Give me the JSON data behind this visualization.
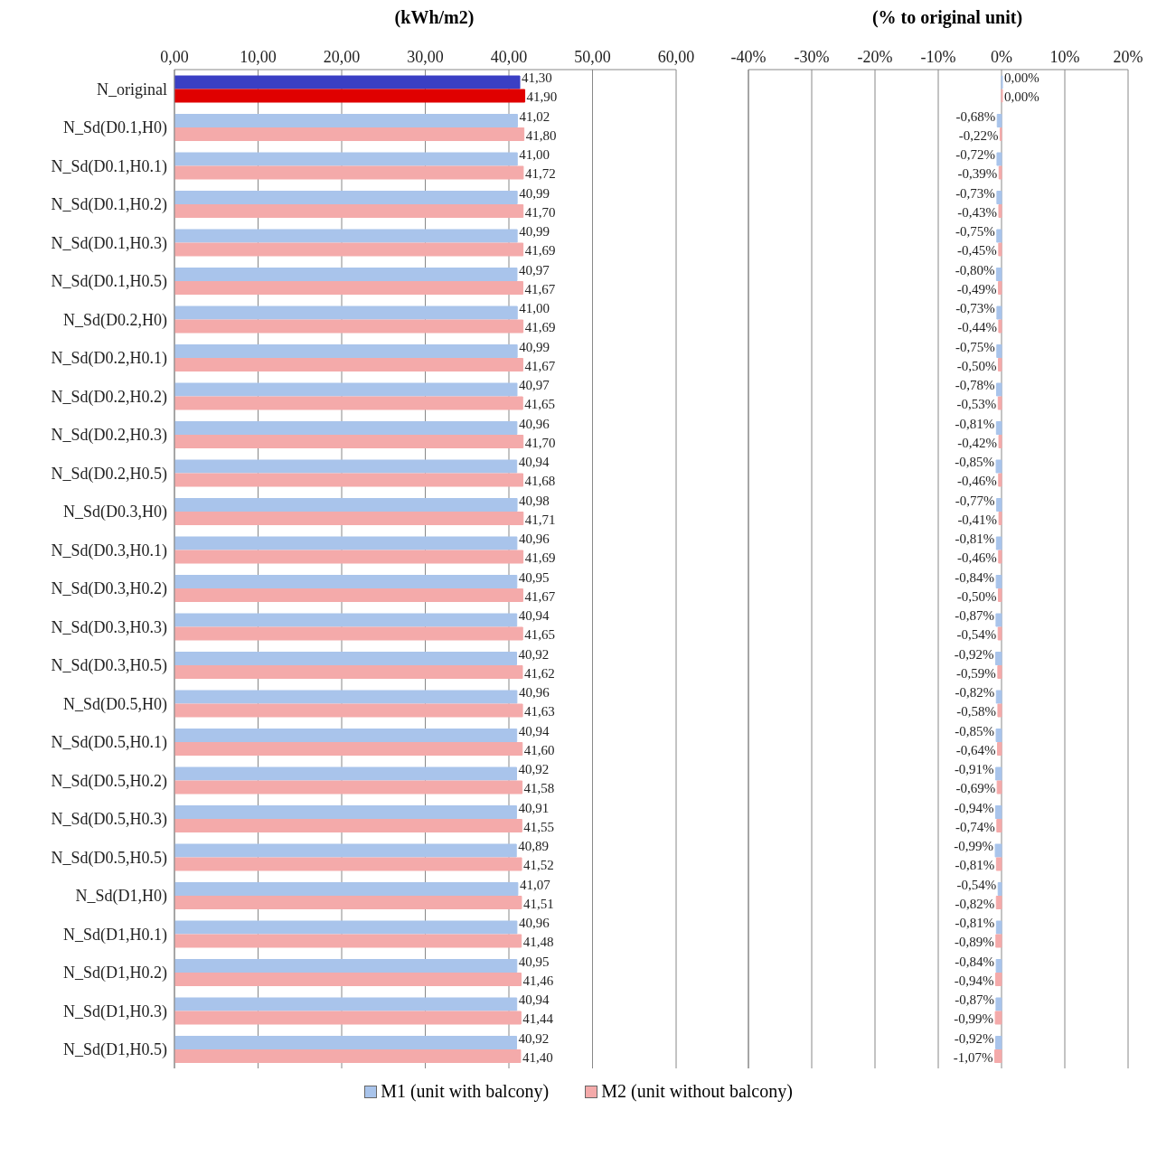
{
  "chart_data": [
    {
      "type": "bar",
      "orientation": "horizontal",
      "title": "(kWh/m2)",
      "categories": [
        "N_original",
        "N_Sd(D0.1,H0)",
        "N_Sd(D0.1,H0.1)",
        "N_Sd(D0.1,H0.2)",
        "N_Sd(D0.1,H0.3)",
        "N_Sd(D0.1,H0.5)",
        "N_Sd(D0.2,H0)",
        "N_Sd(D0.2,H0.1)",
        "N_Sd(D0.2,H0.2)",
        "N_Sd(D0.2,H0.3)",
        "N_Sd(D0.2,H0.5)",
        "N_Sd(D0.3,H0)",
        "N_Sd(D0.3,H0.1)",
        "N_Sd(D0.3,H0.2)",
        "N_Sd(D0.3,H0.3)",
        "N_Sd(D0.3,H0.5)",
        "N_Sd(D0.5,H0)",
        "N_Sd(D0.5,H0.1)",
        "N_Sd(D0.5,H0.2)",
        "N_Sd(D0.5,H0.3)",
        "N_Sd(D0.5,H0.5)",
        "N_Sd(D1,H0)",
        "N_Sd(D1,H0.1)",
        "N_Sd(D1,H0.2)",
        "N_Sd(D1,H0.3)",
        "N_Sd(D1,H0.5)"
      ],
      "series": [
        {
          "name": "M1 (unit with balcony)",
          "color": "#a9c4eb",
          "colors": [
            "#3a3fc4",
            "#a9c4eb",
            "#a9c4eb",
            "#a9c4eb",
            "#a9c4eb",
            "#a9c4eb",
            "#a9c4eb",
            "#a9c4eb",
            "#a9c4eb",
            "#a9c4eb",
            "#a9c4eb",
            "#a9c4eb",
            "#a9c4eb",
            "#a9c4eb",
            "#a9c4eb",
            "#a9c4eb",
            "#a9c4eb",
            "#a9c4eb",
            "#a9c4eb",
            "#a9c4eb",
            "#a9c4eb",
            "#a9c4eb",
            "#a9c4eb",
            "#a9c4eb",
            "#a9c4eb",
            "#a9c4eb"
          ],
          "values": [
            41.3,
            41.02,
            41.0,
            40.99,
            40.99,
            40.97,
            41.0,
            40.99,
            40.97,
            40.96,
            40.94,
            40.98,
            40.96,
            40.95,
            40.94,
            40.92,
            40.96,
            40.94,
            40.92,
            40.91,
            40.89,
            41.07,
            40.96,
            40.95,
            40.94,
            40.92
          ],
          "value_labels": [
            "41,30",
            "41,02",
            "41,00",
            "40,99",
            "40,99",
            "40,97",
            "41,00",
            "40,99",
            "40,97",
            "40,96",
            "40,94",
            "40,98",
            "40,96",
            "40,95",
            "40,94",
            "40,92",
            "40,96",
            "40,94",
            "40,92",
            "40,91",
            "40,89",
            "41,07",
            "40,96",
            "40,95",
            "40,94",
            "40,92"
          ]
        },
        {
          "name": "M2 (unit without balcony)",
          "color": "#f4aaaa",
          "colors": [
            "#e00000",
            "#f4aaaa",
            "#f4aaaa",
            "#f4aaaa",
            "#f4aaaa",
            "#f4aaaa",
            "#f4aaaa",
            "#f4aaaa",
            "#f4aaaa",
            "#f4aaaa",
            "#f4aaaa",
            "#f4aaaa",
            "#f4aaaa",
            "#f4aaaa",
            "#f4aaaa",
            "#f4aaaa",
            "#f4aaaa",
            "#f4aaaa",
            "#f4aaaa",
            "#f4aaaa",
            "#f4aaaa",
            "#f4aaaa",
            "#f4aaaa",
            "#f4aaaa",
            "#f4aaaa",
            "#f4aaaa"
          ],
          "values": [
            41.9,
            41.8,
            41.72,
            41.7,
            41.69,
            41.67,
            41.69,
            41.67,
            41.65,
            41.7,
            41.68,
            41.71,
            41.69,
            41.67,
            41.65,
            41.62,
            41.63,
            41.6,
            41.58,
            41.55,
            41.52,
            41.51,
            41.48,
            41.46,
            41.44,
            41.4
          ],
          "value_labels": [
            "41,90",
            "41,80",
            "41,72",
            "41,70",
            "41,69",
            "41,67",
            "41,69",
            "41,67",
            "41,65",
            "41,70",
            "41,68",
            "41,71",
            "41,69",
            "41,67",
            "41,65",
            "41,62",
            "41,63",
            "41,60",
            "41,58",
            "41,55",
            "41,52",
            "41,51",
            "41,48",
            "41,46",
            "41,44",
            "41,40"
          ]
        }
      ],
      "xlim": [
        0,
        60
      ],
      "xticks": [
        {
          "value": 0,
          "label": "0,00"
        },
        {
          "value": 10,
          "label": "10,00"
        },
        {
          "value": 20,
          "label": "20,00"
        },
        {
          "value": 30,
          "label": "30,00"
        },
        {
          "value": 40,
          "label": "40,00"
        },
        {
          "value": 50,
          "label": "50,00"
        },
        {
          "value": 60,
          "label": "60,00"
        }
      ],
      "grid": "x",
      "legend": "bottom"
    },
    {
      "type": "bar",
      "orientation": "horizontal",
      "title": "(% to original unit)",
      "categories": [
        null,
        null,
        null,
        null,
        null,
        null,
        null,
        null,
        null,
        null,
        null,
        null,
        null,
        null,
        null,
        null,
        null,
        null,
        null,
        null,
        null,
        null,
        null,
        null,
        null,
        null
      ],
      "series": [
        {
          "color": "#a9c4eb",
          "values": [
            0,
            -0.68,
            -0.72,
            -0.73,
            -0.75,
            -0.8,
            -0.73,
            -0.75,
            -0.78,
            -0.81,
            -0.85,
            -0.77,
            -0.81,
            -0.84,
            -0.87,
            -0.92,
            -0.82,
            -0.85,
            -0.91,
            -0.94,
            -0.99,
            -0.54,
            -0.81,
            -0.84,
            -0.87,
            -0.92
          ],
          "value_labels": [
            "0,00%",
            "-0,68%",
            "-0,72%",
            "-0,73%",
            "-0,75%",
            "-0,80%",
            "-0,73%",
            "-0,75%",
            "-0,78%",
            "-0,81%",
            "-0,85%",
            "-0,77%",
            "-0,81%",
            "-0,84%",
            "-0,87%",
            "-0,92%",
            "-0,82%",
            "-0,85%",
            "-0,91%",
            "-0,94%",
            "-0,99%",
            "-0,54%",
            "-0,81%",
            "-0,84%",
            "-0,87%",
            "-0,92%"
          ]
        },
        {
          "color": "#f4aaaa",
          "values": [
            0,
            -0.22,
            -0.39,
            -0.43,
            -0.45,
            -0.49,
            -0.44,
            -0.5,
            -0.53,
            -0.42,
            -0.46,
            -0.41,
            -0.46,
            -0.5,
            -0.54,
            -0.59,
            -0.58,
            -0.64,
            -0.69,
            -0.74,
            -0.81,
            -0.82,
            -0.89,
            -0.94,
            -0.99,
            -1.07
          ],
          "value_labels": [
            "0,00%",
            "-0,22%",
            "-0,39%",
            "-0,43%",
            "-0,45%",
            "-0,49%",
            "-0,44%",
            "-0,50%",
            "-0,53%",
            "-0,42%",
            "-0,46%",
            "-0,41%",
            "-0,46%",
            "-0,50%",
            "-0,54%",
            "-0,59%",
            "-0,58%",
            "-0,64%",
            "-0,69%",
            "-0,74%",
            "-0,81%",
            "-0,82%",
            "-0,89%",
            "-0,94%",
            "-0,99%",
            "-1,07%"
          ]
        }
      ],
      "xlim": [
        -40,
        20
      ],
      "xticks": [
        {
          "value": -40,
          "label": "-40%"
        },
        {
          "value": -30,
          "label": "-30%"
        },
        {
          "value": -20,
          "label": "-20%"
        },
        {
          "value": -10,
          "label": "-10%"
        },
        {
          "value": 0,
          "label": "0%"
        },
        {
          "value": 10,
          "label": "10%"
        },
        {
          "value": 20,
          "label": "20%"
        }
      ],
      "grid": "x",
      "tick_labels": "x"
    }
  ]
}
